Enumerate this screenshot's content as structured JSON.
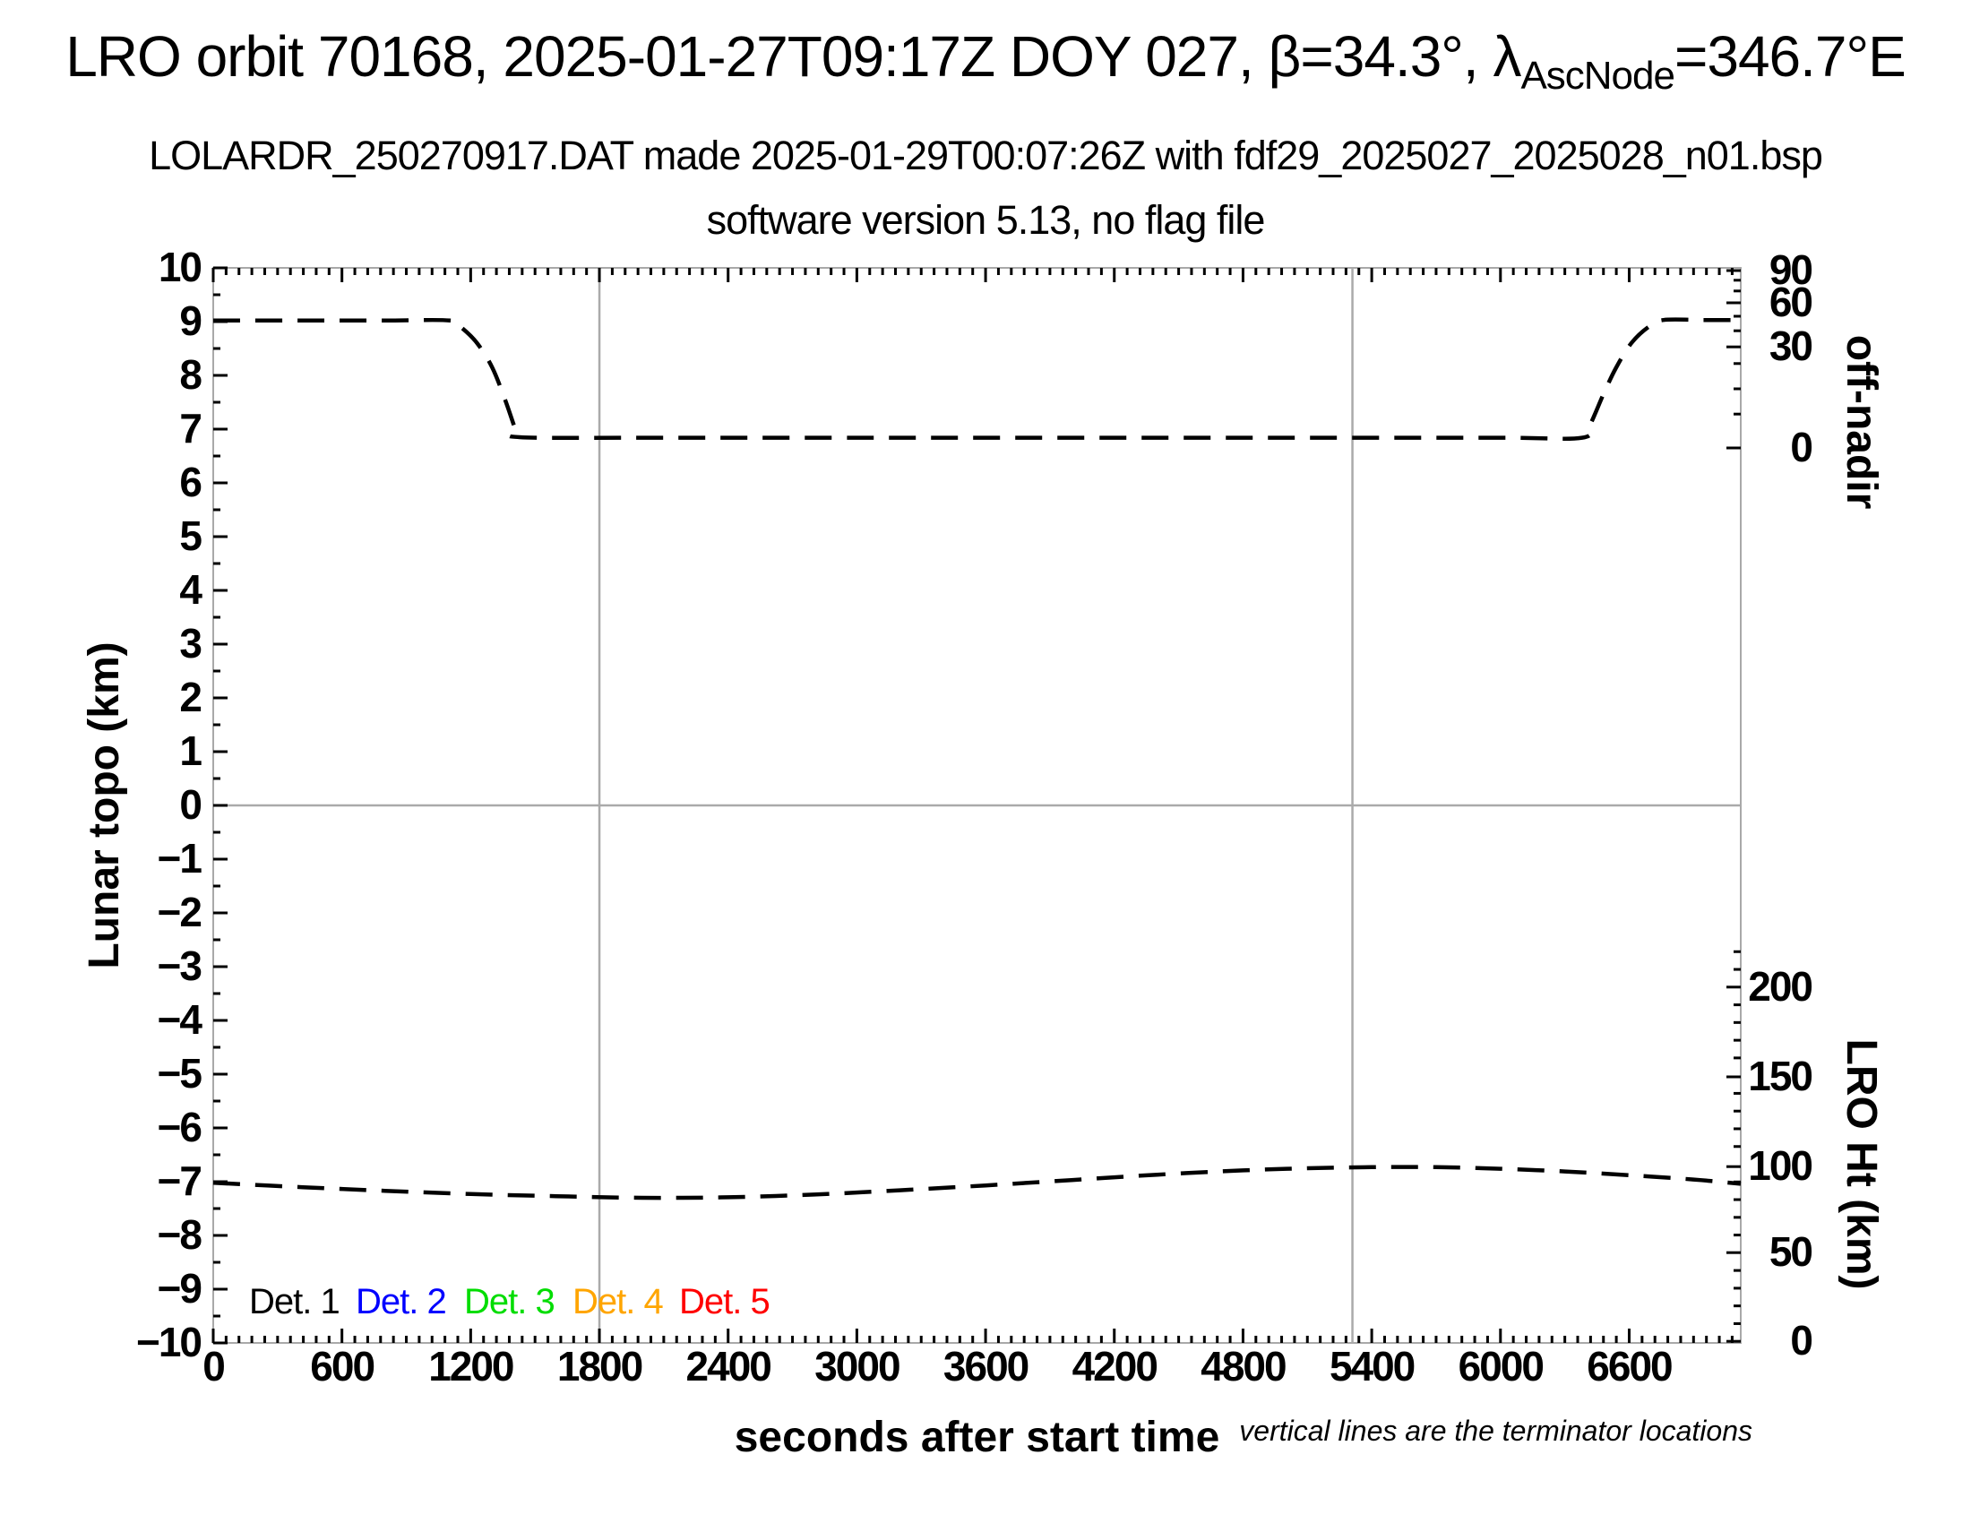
{
  "header": {
    "title_main": "LRO orbit 70168, 2025-01-27T09:17Z DOY 027, β=34.3°, λ",
    "title_subscript": "AscNode",
    "title_tail": "=346.7°E",
    "subtitle1": "LOLARDR_250270917.DAT made 2025-01-29T00:07:26Z with fdf29_2025027_2025028_n01.bsp",
    "subtitle2": "software version 5.13, no flag file"
  },
  "chart_data": {
    "type": "line",
    "title": "LRO orbit 70168, 2025-01-27T09:17Z DOY 027, beta=34.3 deg, lambda_AscNode=346.7 deg E",
    "xlabel": "seconds after start time",
    "x_axis": {
      "min": 0,
      "max": 7120,
      "major_tick_s": 600,
      "minor_tick_s": 60,
      "tick_labels": [
        "0",
        "600",
        "1200",
        "1800",
        "2400",
        "3000",
        "3600",
        "4200",
        "4800",
        "5400",
        "6000",
        "6600"
      ]
    },
    "y_left_axis": {
      "label": "Lunar topo (km)",
      "min": -10,
      "max": 10,
      "major": 1,
      "minor": 0.5
    },
    "y_right_offnadir_axis": {
      "label": "off-nadir",
      "major_ticks": [
        {
          "label": "90",
          "u": 9.95
        },
        {
          "label": "60",
          "u": 9.35
        },
        {
          "label": "30",
          "u": 8.53
        },
        {
          "label": "0",
          "u": 6.65
        }
      ],
      "minor_ticks_u": [
        9.77,
        9.57,
        9.1,
        8.83,
        8.22,
        7.75,
        7.28
      ]
    },
    "y_right_height_axis": {
      "label": "LRO Ht (km)",
      "major_ticks": [
        {
          "label": "200",
          "u": -3.38
        },
        {
          "label": "150",
          "u": -5.05
        },
        {
          "label": "100",
          "u": -6.72
        },
        {
          "label": "50",
          "u": -8.32
        },
        {
          "label": "0",
          "u": -9.97
        }
      ],
      "minor_ticks_u": [
        -2.721,
        -3.051,
        -3.71,
        -4.039,
        -4.369,
        -4.698,
        -5.357,
        -5.687,
        -6.016,
        -6.346,
        -7.005,
        -7.334,
        -7.664,
        -7.993,
        -8.652,
        -8.982,
        -9.311,
        -9.641
      ]
    },
    "series": [
      {
        "name": "off-nadir-angle",
        "axis": "right-offnadir",
        "color": "#000000",
        "dash": [
          30,
          17
        ],
        "width": 4.5,
        "points_t_u": [
          [
            0,
            9.02
          ],
          [
            400,
            9.02
          ],
          [
            800,
            9.02
          ],
          [
            1104,
            9.02
          ],
          [
            1160,
            8.88
          ],
          [
            1230,
            8.6
          ],
          [
            1300,
            8.15
          ],
          [
            1360,
            7.55
          ],
          [
            1410,
            6.98
          ],
          [
            1428,
            6.85
          ],
          [
            2000,
            6.84
          ],
          [
            3000,
            6.84
          ],
          [
            4000,
            6.84
          ],
          [
            5000,
            6.84
          ],
          [
            6000,
            6.84
          ],
          [
            6380,
            6.84
          ],
          [
            6420,
            7.1
          ],
          [
            6480,
            7.65
          ],
          [
            6540,
            8.15
          ],
          [
            6610,
            8.6
          ],
          [
            6690,
            8.9
          ],
          [
            6760,
            9.03
          ],
          [
            6940,
            9.03
          ],
          [
            7120,
            9.03
          ]
        ]
      },
      {
        "name": "lro-height",
        "axis": "right-height",
        "color": "#000000",
        "dash": [
          30,
          17
        ],
        "width": 4.5,
        "points_t_u": [
          [
            0,
            -7.02
          ],
          [
            400,
            -7.1
          ],
          [
            800,
            -7.17
          ],
          [
            1200,
            -7.23
          ],
          [
            1600,
            -7.27
          ],
          [
            2000,
            -7.3
          ],
          [
            2400,
            -7.29
          ],
          [
            2800,
            -7.24
          ],
          [
            3200,
            -7.16
          ],
          [
            3600,
            -7.07
          ],
          [
            4000,
            -6.97
          ],
          [
            4400,
            -6.87
          ],
          [
            4800,
            -6.79
          ],
          [
            5100,
            -6.75
          ],
          [
            5400,
            -6.73
          ],
          [
            5700,
            -6.73
          ],
          [
            6000,
            -6.76
          ],
          [
            6300,
            -6.81
          ],
          [
            6600,
            -6.88
          ],
          [
            6900,
            -6.96
          ],
          [
            7120,
            -7.04
          ]
        ]
      }
    ],
    "terminator_lines_t": [
      1800,
      5310
    ],
    "zero_line_u": 0,
    "legend": [
      {
        "label": "Det. 1",
        "color": "#000000"
      },
      {
        "label": "Det. 2",
        "color": "#0000ff"
      },
      {
        "label": "Det. 3",
        "color": "#00dd00"
      },
      {
        "label": "Det. 4",
        "color": "#ffa500"
      },
      {
        "label": "Det. 5",
        "color": "#ff0000"
      }
    ],
    "note": "vertical lines are the terminator locations",
    "colors": {
      "frame": "#a9a9a9",
      "tick": "#000000",
      "guide": "#aaaaaa",
      "text": "#000000"
    }
  }
}
